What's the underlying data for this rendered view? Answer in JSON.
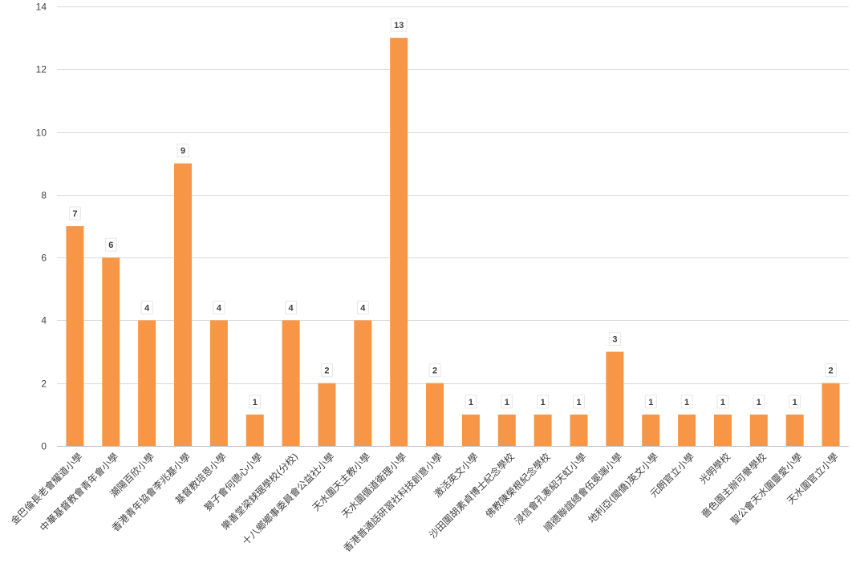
{
  "chart_data": {
    "type": "bar",
    "title": "",
    "xlabel": "",
    "ylabel": "",
    "ylim": [
      0,
      14
    ],
    "yticks": [
      0,
      2,
      4,
      6,
      8,
      10,
      12,
      14
    ],
    "grid": true,
    "legend": "none",
    "bar_color": "#f79646",
    "categories": [
      "金巴倫長老會耀道小學",
      "中華基督教會青年會小學",
      "潮陽百欣小學",
      "香港青年協會李兆基小學",
      "基督教培恩小學",
      "獅子會何德心小學",
      "樂善堂梁銶琚學校(分校)",
      "十八鄉鄉事委員會公益社小學",
      "天水圍天主教小學",
      "天水圍循道衛理小學",
      "香港普通話研習社科技創意小學",
      "激活英文小學",
      "沙田圍胡素貞博士紀念學校",
      "佛教陳榮根紀念學校",
      "浸信會孔憲紹天虹小學",
      "順德聯誼總會伍冕端小學",
      "地利亞(閩僑)英文小學",
      "元朗官立小學",
      "光明學校",
      "嗇色園主辦可譽學校",
      "聖公會天水圍靈愛小學",
      "天水圍官立小學"
    ],
    "values": [
      7,
      6,
      4,
      9,
      4,
      1,
      4,
      2,
      4,
      13,
      2,
      1,
      1,
      1,
      1,
      3,
      1,
      1,
      1,
      1,
      1,
      2
    ]
  }
}
